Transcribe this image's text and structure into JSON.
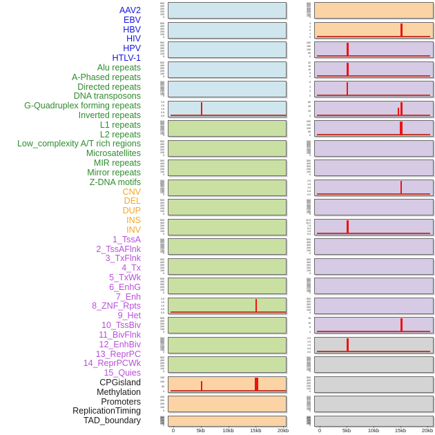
{
  "chart_data": {
    "type": "small_multiples_tracks",
    "description": "Genomic feature signal tracks: two columns of mini bar/line panels over a 0-20kb window, red spikes mark feature density peaks",
    "x_ticks": [
      "0",
      "5kb",
      "10kb",
      "15kb",
      "20kb"
    ],
    "x_range_kb": [
      0,
      20
    ],
    "legend_position": "none",
    "grid": false,
    "colors": {
      "label_virus": "#1515dd",
      "label_repeat": "#2e8b2e",
      "label_sv": "#f5a623",
      "label_chromstate": "#b94fd8",
      "label_other": "#1a1a1a",
      "bg_blue": "#cfe6ee",
      "bg_green": "#c9e0a2",
      "bg_orange": "#fbd3a4",
      "bg_purple": "#d6cae5",
      "bg_gray": "#d4d4d4",
      "spike_red": "#ee1211",
      "baseline_red": "#c33a2a",
      "panel_border": "#6b6b6b",
      "tick_text": "#3a3a3a",
      "axis_text": "#222222"
    },
    "feature_labels": [
      {
        "text": "AAV2",
        "group": "virus"
      },
      {
        "text": "EBV",
        "group": "virus"
      },
      {
        "text": "HBV",
        "group": "virus"
      },
      {
        "text": "HIV",
        "group": "virus"
      },
      {
        "text": "HPV",
        "group": "virus"
      },
      {
        "text": "HTLV-1",
        "group": "virus"
      },
      {
        "text": "Alu repeats",
        "group": "repeat"
      },
      {
        "text": "A-Phased repeats",
        "group": "repeat"
      },
      {
        "text": "Directed repeats",
        "group": "repeat"
      },
      {
        "text": "DNA transposons",
        "group": "repeat"
      },
      {
        "text": "G-Quadruplex forming repeats",
        "group": "repeat"
      },
      {
        "text": "Inverted repeats",
        "group": "repeat"
      },
      {
        "text": "L1 repeats",
        "group": "repeat"
      },
      {
        "text": "L2 repeats",
        "group": "repeat"
      },
      {
        "text": "Low_complexity A/T rich regions",
        "group": "repeat"
      },
      {
        "text": "Microsatellites",
        "group": "repeat"
      },
      {
        "text": "MIR repeats",
        "group": "repeat"
      },
      {
        "text": "Mirror repeats",
        "group": "repeat"
      },
      {
        "text": "Z-DNA motifs",
        "group": "repeat"
      },
      {
        "text": "CNV",
        "group": "sv"
      },
      {
        "text": "DEL",
        "group": "sv"
      },
      {
        "text": "DUP",
        "group": "sv"
      },
      {
        "text": "INS",
        "group": "sv"
      },
      {
        "text": "INV",
        "group": "sv"
      },
      {
        "text": "1_TssA",
        "group": "chromstate"
      },
      {
        "text": "2_TssAFlnk",
        "group": "chromstate"
      },
      {
        "text": "3_TxFlnk",
        "group": "chromstate"
      },
      {
        "text": "4_Tx",
        "group": "chromstate"
      },
      {
        "text": "5_TxWk",
        "group": "chromstate"
      },
      {
        "text": "6_EnhG",
        "group": "chromstate"
      },
      {
        "text": "7_Enh",
        "group": "chromstate"
      },
      {
        "text": "8_ZNF_Rpts",
        "group": "chromstate"
      },
      {
        "text": "9_Het",
        "group": "chromstate"
      },
      {
        "text": "10_TssBiv",
        "group": "chromstate"
      },
      {
        "text": "11_BivFlnk",
        "group": "chromstate"
      },
      {
        "text": "12_EnhBiv",
        "group": "chromstate"
      },
      {
        "text": "13_ReprPC",
        "group": "chromstate"
      },
      {
        "text": "14_ReprPCWk",
        "group": "chromstate"
      },
      {
        "text": "15_Quies",
        "group": "chromstate"
      },
      {
        "text": "CPGisland",
        "group": "other"
      },
      {
        "text": "Methylation",
        "group": "other"
      },
      {
        "text": "Promoters",
        "group": "other"
      },
      {
        "text": "ReplicationTiming",
        "group": "other"
      },
      {
        "text": "TAD_boundary",
        "group": "other"
      }
    ],
    "tick_sets": {
      "std": [
        "500",
        "400",
        "300",
        "200",
        "100",
        "0"
      ],
      "dense": [
        "500",
        "450",
        "400",
        "350",
        "300",
        "250",
        "200",
        "150",
        "100",
        "0"
      ],
      "dec2": [
        "2.0",
        "1.5",
        "1.0",
        "0.5",
        "0.0"
      ]
    },
    "columns": [
      {
        "name": "left",
        "panels": [
          {
            "bg": "bg_blue",
            "ticks": "std",
            "spikes": []
          },
          {
            "bg": "bg_blue",
            "ticks": "std",
            "spikes": []
          },
          {
            "bg": "bg_blue",
            "ticks": "std",
            "spikes": []
          },
          {
            "bg": "bg_blue",
            "ticks": "std",
            "spikes": []
          },
          {
            "bg": "bg_blue",
            "ticks": "dense",
            "spikes": []
          },
          {
            "bg": "bg_blue",
            "ticks": "dec2",
            "spikes": [
              {
                "kb": 5,
                "w": 2.5,
                "h": 1
              }
            ]
          },
          {
            "bg": "bg_green",
            "ticks": "dense",
            "spikes": []
          },
          {
            "bg": "bg_green",
            "ticks": "std",
            "spikes": []
          },
          {
            "bg": "bg_green",
            "ticks": "std",
            "spikes": []
          },
          {
            "bg": "bg_green",
            "ticks": "dense",
            "spikes": []
          },
          {
            "bg": "bg_green",
            "ticks": "std",
            "spikes": []
          },
          {
            "bg": "bg_green",
            "ticks": "std",
            "spikes": []
          },
          {
            "bg": "bg_green",
            "ticks": "dense",
            "spikes": []
          },
          {
            "bg": "bg_green",
            "ticks": "std",
            "spikes": []
          },
          {
            "bg": "bg_green",
            "ticks": "std",
            "spikes": []
          },
          {
            "bg": "bg_green",
            "ticks": "dec2",
            "spikes": [
              {
                "kb": 15,
                "w": 2,
                "h": 1
              }
            ]
          },
          {
            "bg": "bg_green",
            "ticks": "std",
            "spikes": []
          },
          {
            "bg": "bg_green",
            "ticks": "dense",
            "spikes": []
          },
          {
            "bg": "bg_green",
            "ticks": "std",
            "spikes": []
          },
          {
            "bg": "bg_orange",
            "ticks": [
              "150",
              "100",
              "50",
              "0"
            ],
            "spikes": [
              {
                "kb": 5,
                "w": 2.5,
                "h": 0.72
              },
              {
                "kb": 15,
                "w": 4.5,
                "h": 1
              }
            ]
          },
          {
            "bg": "bg_orange",
            "ticks": [
              "400",
              "300",
              "200",
              "100",
              "0"
            ],
            "spikes": []
          },
          {
            "bg": "bg_orange",
            "ticks": "dense",
            "spikes": []
          }
        ]
      },
      {
        "name": "right",
        "panels": [
          {
            "bg": "bg_orange",
            "ticks": "dense",
            "spikes": []
          },
          {
            "bg": "bg_orange",
            "ticks": [
              "4",
              "3",
              "2",
              "1",
              "0"
            ],
            "spikes": [
              {
                "kb": 15,
                "w": 3,
                "h": 1
              }
            ]
          },
          {
            "bg": "bg_purple",
            "ticks": [
              "200",
              "150",
              "100",
              "50",
              "0"
            ],
            "spikes": [
              {
                "kb": 5,
                "w": 3,
                "h": 1
              }
            ]
          },
          {
            "bg": "bg_purple",
            "ticks": [
              "20",
              "15",
              "10",
              "5",
              "0"
            ],
            "spikes": [
              {
                "kb": 5,
                "w": 3,
                "h": 1
              }
            ]
          },
          {
            "bg": "bg_purple",
            "ticks": [
              "6",
              "4",
              "2",
              "0"
            ],
            "spikes": [
              {
                "kb": 5,
                "w": 2.5,
                "h": 1
              }
            ]
          },
          {
            "bg": "bg_purple",
            "ticks": [
              "60",
              "40",
              "20",
              "0"
            ],
            "spikes": [
              {
                "kb": 14.5,
                "w": 1.5,
                "h": 0.55
              },
              {
                "kb": 15,
                "w": 3,
                "h": 1
              }
            ]
          },
          {
            "bg": "bg_purple",
            "ticks": [
              "200",
              "150",
              "100",
              "50",
              "0"
            ],
            "spikes": [
              {
                "kb": 15,
                "w": 4.5,
                "h": 1
              }
            ]
          },
          {
            "bg": "bg_purple",
            "ticks": "dense",
            "spikes": []
          },
          {
            "bg": "bg_purple",
            "ticks": "std",
            "spikes": []
          },
          {
            "bg": "bg_purple",
            "ticks": "dec2",
            "spikes": [
              {
                "kb": 15,
                "w": 1.5,
                "h": 1
              }
            ]
          },
          {
            "bg": "bg_purple",
            "ticks": "dense",
            "spikes": []
          },
          {
            "bg": "bg_purple",
            "ticks": [
              "12.5",
              "10.0",
              "7.5",
              "5.0",
              "2.5",
              "0.0"
            ],
            "spikes": [
              {
                "kb": 5,
                "w": 3,
                "h": 1
              }
            ]
          },
          {
            "bg": "bg_purple",
            "ticks": "std",
            "spikes": []
          },
          {
            "bg": "bg_purple",
            "ticks": "std",
            "spikes": []
          },
          {
            "bg": "bg_purple",
            "ticks": "dense",
            "spikes": []
          },
          {
            "bg": "bg_purple",
            "ticks": "std",
            "spikes": []
          },
          {
            "bg": "bg_purple",
            "ticks": [
              "15",
              "10",
              "5",
              "0"
            ],
            "spikes": [
              {
                "kb": 15,
                "w": 3,
                "h": 1
              }
            ]
          },
          {
            "bg": "bg_gray",
            "ticks": "dec2",
            "spikes": [
              {
                "kb": 5,
                "w": 3,
                "h": 1
              }
            ]
          },
          {
            "bg": "bg_gray",
            "ticks": "dense",
            "spikes": []
          },
          {
            "bg": "bg_gray",
            "ticks": "std",
            "spikes": []
          },
          {
            "bg": "bg_gray",
            "ticks": "dense",
            "spikes": []
          },
          {
            "bg": "bg_gray",
            "ticks": "dense",
            "spikes": []
          }
        ]
      }
    ]
  }
}
